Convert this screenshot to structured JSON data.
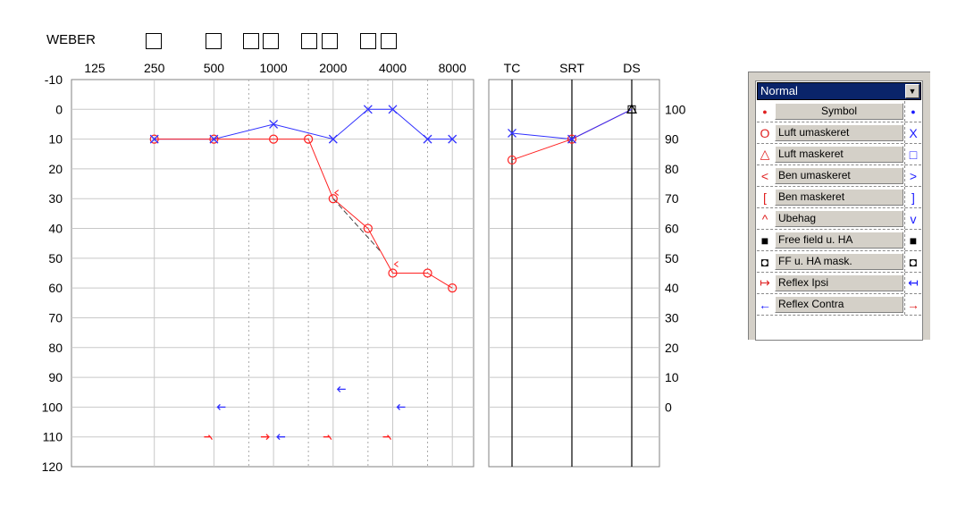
{
  "weber": {
    "label": "WEBER"
  },
  "audiogram": {
    "freq_labels": [
      "125",
      "250",
      "500",
      "1000",
      "2000",
      "4000",
      "8000"
    ],
    "y_labels": [
      "-10",
      "0",
      "10",
      "20",
      "30",
      "40",
      "50",
      "60",
      "70",
      "80",
      "90",
      "100",
      "110",
      "120"
    ],
    "speech_right_labels": [
      "100",
      "90",
      "80",
      "70",
      "60",
      "50",
      "40",
      "30",
      "20",
      "10",
      "0"
    ],
    "speech_headers": [
      "TC",
      "SRT",
      "DS"
    ],
    "colors": {
      "right": "#ff2020",
      "left": "#3030ff",
      "grid": "#c8c8c8"
    }
  },
  "chart_data": {
    "type": "line",
    "title": "",
    "xlabel": "",
    "ylabel": "",
    "x_scale": "log2 (Hz)",
    "ylim": [
      -10,
      120
    ],
    "series": [
      {
        "name": "Luft umaskeret",
        "side": "right",
        "symbol": "circle",
        "x": [
          250,
          500,
          1000,
          1500,
          2000,
          3000,
          4000,
          6000,
          8000
        ],
        "y": [
          10,
          10,
          10,
          10,
          30,
          40,
          55,
          55,
          60
        ]
      },
      {
        "name": "Luft umaskeret",
        "side": "left",
        "symbol": "x",
        "x": [
          250,
          500,
          1000,
          2000,
          3000,
          4000,
          6000,
          8000
        ],
        "y": [
          10,
          10,
          5,
          10,
          0,
          0,
          10,
          10
        ]
      },
      {
        "name": "Ben umaskeret",
        "side": "right",
        "symbol": "<",
        "x": [
          2000,
          4000
        ],
        "y": [
          28,
          52
        ]
      },
      {
        "name": "Reflex Ipsi",
        "side": "right",
        "x": [
          500,
          900,
          2000,
          4000
        ],
        "y": [
          110,
          110,
          110,
          110
        ]
      },
      {
        "name": "Reflex Ipsi",
        "side": "left",
        "x": [
          1000
        ],
        "y": [
          110
        ]
      },
      {
        "name": "Reflex Contra",
        "side": "left",
        "x": [
          500,
          2000,
          4000
        ],
        "y": [
          100,
          94,
          100
        ]
      }
    ],
    "speech": {
      "x": [
        "TC",
        "SRT",
        "DS"
      ],
      "right": [
        83,
        90,
        100
      ],
      "left": [
        92,
        90,
        100
      ]
    }
  },
  "legend": {
    "mode_value": "Normal",
    "header": "Symbol",
    "rows": [
      {
        "label": "Luft umaskeret",
        "left_glyph": "O",
        "right_glyph": "X"
      },
      {
        "label": "Luft maskeret",
        "left_glyph": "△",
        "right_glyph": "□"
      },
      {
        "label": "Ben umaskeret",
        "left_glyph": "<",
        "right_glyph": ">"
      },
      {
        "label": "Ben maskeret",
        "left_glyph": "[",
        "right_glyph": "]"
      },
      {
        "label": "Ubehag",
        "left_glyph": "^",
        "right_glyph": "v"
      },
      {
        "label": "Free field u. HA",
        "left_glyph": "■",
        "right_glyph": "■"
      },
      {
        "label": "FF u. HA mask.",
        "left_glyph": "◘",
        "right_glyph": "◘"
      },
      {
        "label": "Reflex Ipsi",
        "left_glyph": "↦",
        "right_glyph": "↤"
      },
      {
        "label": "Reflex Contra",
        "left_glyph": "←",
        "right_glyph": "→"
      }
    ]
  }
}
